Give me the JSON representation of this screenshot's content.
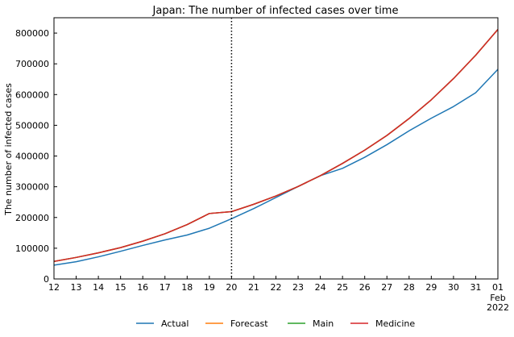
{
  "chart_data": {
    "type": "line",
    "title": "Japan: The number of infected cases over time",
    "xlabel": "",
    "ylabel": "The number of infected cases",
    "x_tick_labels": [
      "12",
      "13",
      "14",
      "15",
      "16",
      "17",
      "18",
      "19",
      "20",
      "21",
      "22",
      "23",
      "24",
      "25",
      "26",
      "27",
      "28",
      "29",
      "30",
      "31",
      "01"
    ],
    "x_tick_sublabels": [
      "Feb",
      "2022"
    ],
    "x": [
      "2022-01-12",
      "2022-01-13",
      "2022-01-14",
      "2022-01-15",
      "2022-01-16",
      "2022-01-17",
      "2022-01-18",
      "2022-01-19",
      "2022-01-20",
      "2022-01-21",
      "2022-01-22",
      "2022-01-23",
      "2022-01-24",
      "2022-01-25",
      "2022-01-26",
      "2022-01-27",
      "2022-01-28",
      "2022-01-29",
      "2022-01-30",
      "2022-01-31",
      "2022-02-01"
    ],
    "xlim": [
      "2022-01-12",
      "2022-02-01"
    ],
    "ylim": [
      0,
      850000
    ],
    "yticks": [
      0,
      100000,
      200000,
      300000,
      400000,
      500000,
      600000,
      700000,
      800000
    ],
    "vline_x": "2022-01-20",
    "legend_position": "bottom",
    "series": [
      {
        "name": "Actual",
        "color": "#1f77b4",
        "values": [
          45000,
          56000,
          72000,
          90000,
          109000,
          127000,
          143000,
          165000,
          196000,
          229000,
          265000,
          301000,
          336000,
          360000,
          396000,
          437000,
          482000,
          523000,
          561000,
          606000,
          682000
        ]
      },
      {
        "name": "Forecast",
        "color": "#ff7f0e",
        "values": [
          57000,
          70000,
          85000,
          102000,
          123000,
          147000,
          177000,
          213000,
          219000,
          243000,
          270000,
          301000,
          336000,
          376000,
          419000,
          467000,
          522000,
          583000,
          652000,
          728000,
          812000
        ]
      },
      {
        "name": "Main",
        "color": "#2ca02c",
        "values": [
          57000,
          70000,
          85000,
          102000,
          123000,
          147000,
          177000,
          213000,
          219000,
          243000,
          270000,
          301000,
          336000,
          376000,
          419000,
          467000,
          522000,
          583000,
          652000,
          728000,
          812000
        ]
      },
      {
        "name": "Medicine",
        "color": "#d62728",
        "values": [
          57000,
          70000,
          85000,
          102000,
          123000,
          147000,
          177000,
          213000,
          219000,
          243000,
          270000,
          301000,
          336000,
          376000,
          419000,
          467000,
          522000,
          583000,
          652000,
          728000,
          812000
        ]
      }
    ]
  }
}
